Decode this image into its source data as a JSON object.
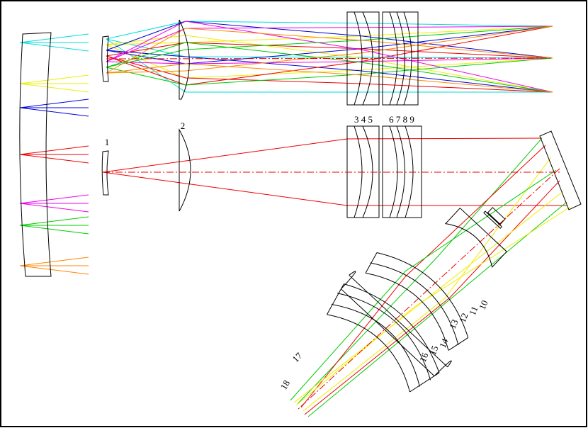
{
  "labels": {
    "lens_1": "1",
    "lens_2": "2",
    "group_345": "3 4 5",
    "group_6789": "6 7 8 9",
    "lens_10": "10",
    "lens_11": "11",
    "lens_12": "12",
    "lens_13": "13",
    "lens_14": "14",
    "lens_15": "15",
    "lens_16": "16",
    "lens_17": "17",
    "lens_18": "18"
  }
}
